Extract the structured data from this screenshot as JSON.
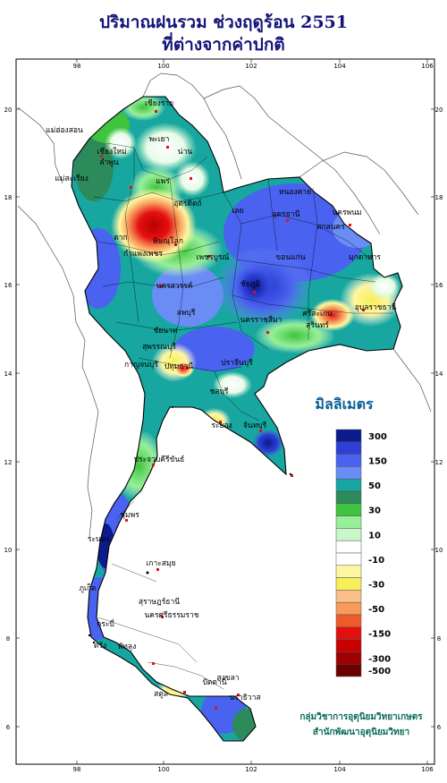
{
  "title_line1": "ปริมาณฝนรวม ช่วงฤดูร้อน 2551",
  "title_line2": "ที่ต่างจากค่าปกติ",
  "legend": {
    "title": "มิลลิเมตร",
    "levels": [
      {
        "label": "300",
        "color": "#0b1a8c"
      },
      {
        "label": "",
        "color": "#2e3fd6"
      },
      {
        "label": "150",
        "color": "#4a62f0"
      },
      {
        "label": "",
        "color": "#6a8cf5"
      },
      {
        "label": "50",
        "color": "#17a7a0"
      },
      {
        "label": "",
        "color": "#2d8a5a"
      },
      {
        "label": "30",
        "color": "#3ec43e"
      },
      {
        "label": "",
        "color": "#97ef97"
      },
      {
        "label": "10",
        "color": "#c9f7c9"
      },
      {
        "label": "",
        "color": "#ffffff"
      },
      {
        "label": "-10",
        "color": "#ffffff"
      },
      {
        "label": "",
        "color": "#fff6a0"
      },
      {
        "label": "-30",
        "color": "#f7ef5a"
      },
      {
        "label": "",
        "color": "#fbc08a"
      },
      {
        "label": "-50",
        "color": "#f79a5c"
      },
      {
        "label": "",
        "color": "#f05a2a"
      },
      {
        "label": "-150",
        "color": "#e41010"
      },
      {
        "label": "",
        "color": "#c80000"
      },
      {
        "label": "-300",
        "color": "#a00000"
      },
      {
        "label": "-500",
        "color": "#6a0000"
      }
    ]
  },
  "axes": {
    "lon_ticks": [
      "98",
      "100",
      "102",
      "104",
      "106"
    ],
    "lat_ticks": [
      "20",
      "18",
      "16",
      "14",
      "12",
      "10",
      "8",
      "6"
    ]
  },
  "labels": [
    {
      "text": "เชียงราย"
    },
    {
      "text": "แม่ฮ่องสอน"
    },
    {
      "text": "พะเยา"
    },
    {
      "text": "เชียงใหม่"
    },
    {
      "text": "ลำพูน"
    },
    {
      "text": "น่าน"
    },
    {
      "text": "แพร่"
    },
    {
      "text": "แม่สะเรียง"
    },
    {
      "text": "อุตรดิตถ์"
    },
    {
      "text": "หนองคาย"
    },
    {
      "text": "อุดรธานี"
    },
    {
      "text": "นครพนม"
    },
    {
      "text": "เลย"
    },
    {
      "text": "สกลนคร"
    },
    {
      "text": "ตาก"
    },
    {
      "text": "พิษณุโลก"
    },
    {
      "text": "กำแพงเพชร"
    },
    {
      "text": "เพชรบูรณ์"
    },
    {
      "text": "ขอนแก่น"
    },
    {
      "text": "มุกดาหาร"
    },
    {
      "text": "นครสวรรค์"
    },
    {
      "text": "ชัยภูมิ"
    },
    {
      "text": "อุบลราชธานี"
    },
    {
      "text": "ลพบุรี"
    },
    {
      "text": "นครราชสีมา"
    },
    {
      "text": "ศรีสะเกษ"
    },
    {
      "text": "สุพรรณบุรี"
    },
    {
      "text": "สุรินทร์"
    },
    {
      "text": "ชัยนาท"
    },
    {
      "text": "กาญจนบุรี"
    },
    {
      "text": "ปทุมธานี"
    },
    {
      "text": "ปราจีนบุรี"
    },
    {
      "text": "ชลบุรี"
    },
    {
      "text": "จันทบุรี"
    },
    {
      "text": "ระยอง"
    },
    {
      "text": "ประจวบคีรีขันธ์"
    },
    {
      "text": "ชุมพร"
    },
    {
      "text": "ระนอง"
    },
    {
      "text": "เกาะสมุย"
    },
    {
      "text": "สุราษฎร์ธานี"
    },
    {
      "text": "ภูเก็ต"
    },
    {
      "text": "นครศรีธรรมราช"
    },
    {
      "text": "พัทลุง"
    },
    {
      "text": "สงขลา"
    },
    {
      "text": "สตูล"
    },
    {
      "text": "ปัตตานี"
    },
    {
      "text": "นราธิวาส"
    },
    {
      "text": "ตรัง"
    },
    {
      "text": "กระบี่"
    }
  ],
  "credit_line1": "กลุ่มวิชาการอุตุนิยมวิทยาเกษตร",
  "credit_line2": "สำนักพัฒนาอุตุนิยมวิทยา"
}
